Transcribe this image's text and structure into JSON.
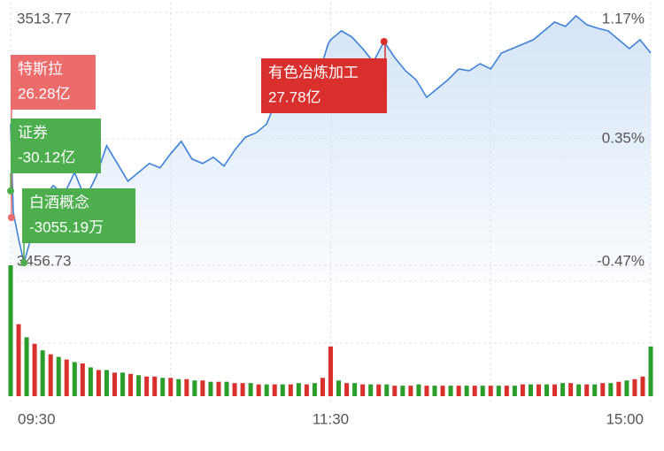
{
  "chart_data": [
    {
      "type": "line",
      "color": "#3d82d6",
      "fill_color": "#cfe1f6",
      "xlim": [
        0,
        240
      ],
      "xticks": [
        {
          "value": 0,
          "label": "09:30"
        },
        {
          "value": 120,
          "label": "11:30"
        },
        {
          "value": 240,
          "label": "15:00"
        }
      ],
      "x": [
        0,
        1,
        3,
        5,
        8,
        12,
        16,
        20,
        24,
        28,
        32,
        36,
        40,
        44,
        48,
        52,
        56,
        60,
        64,
        68,
        72,
        76,
        80,
        84,
        88,
        92,
        96,
        100,
        104,
        108,
        112,
        116,
        119,
        120,
        124,
        128,
        132,
        136,
        140,
        144,
        148,
        152,
        156,
        160,
        164,
        168,
        172,
        176,
        180,
        184,
        188,
        192,
        196,
        200,
        204,
        208,
        212,
        216,
        220,
        224,
        228,
        232,
        236,
        240
      ],
      "values": [
        3488.6,
        3468.7,
        3462.7,
        3457.3,
        3463.7,
        3471.7,
        3474.7,
        3472.7,
        3477.7,
        3471.7,
        3476.7,
        3483.7,
        3479.7,
        3475.7,
        3477.7,
        3479.7,
        3478.7,
        3481.9,
        3484.7,
        3480.7,
        3479.7,
        3481.1,
        3479.1,
        3482.7,
        3485.6,
        3486.6,
        3488.6,
        3494.6,
        3497.6,
        3496.6,
        3498.6,
        3500.6,
        3506.6,
        3507.6,
        3509.6,
        3508.2,
        3505.6,
        3502.6,
        3507.2,
        3503.6,
        3500.6,
        3498.6,
        3494.6,
        3496.6,
        3498.6,
        3501.0,
        3500.6,
        3502.2,
        3501.0,
        3504.6,
        3505.6,
        3506.6,
        3507.6,
        3509.6,
        3511.6,
        3510.6,
        3513.0,
        3511.0,
        3510.2,
        3509.6,
        3507.6,
        3505.6,
        3507.6,
        3504.6
      ],
      "ylim": [
        3456.73,
        3513.77
      ],
      "yticks": [
        3513.77,
        3485.25,
        3456.73
      ],
      "y2lim": [
        -0.47,
        1.17
      ],
      "y2ticks": [
        {
          "value": 1.17,
          "label": "1.17%"
        },
        {
          "value": 0.35,
          "label": "0.35%"
        },
        {
          "value": -0.47,
          "label": "-0.47%"
        }
      ],
      "grid": true,
      "annotations": [
        {
          "title": "特斯拉",
          "amount": "26.28亿",
          "x": 0.3,
          "y": 3467.5,
          "color": "#ec6b6b"
        },
        {
          "title": "证券",
          "amount": "-30.12亿",
          "x": 0,
          "y": 3473.5,
          "color": "#4cae4c"
        },
        {
          "title": "白酒概念",
          "amount": "-3055.19万",
          "x": 5,
          "y": 3457.3,
          "color": "#4cae4c"
        },
        {
          "title": "有色冶炼加工",
          "amount": "27.78亿",
          "x": 140,
          "y": 3507.2,
          "color": "#d9302e"
        }
      ]
    },
    {
      "type": "bar",
      "xlim": [
        0,
        240
      ],
      "ylim": [
        0,
        100
      ],
      "x": [
        0,
        3,
        6,
        9,
        12,
        15,
        18,
        21,
        24,
        27,
        30,
        33,
        36,
        39,
        42,
        45,
        48,
        51,
        54,
        57,
        60,
        63,
        66,
        69,
        72,
        75,
        78,
        81,
        84,
        87,
        90,
        93,
        96,
        99,
        102,
        105,
        108,
        111,
        114,
        117,
        120,
        123,
        126,
        129,
        132,
        135,
        138,
        141,
        144,
        147,
        150,
        153,
        156,
        159,
        162,
        165,
        168,
        171,
        174,
        177,
        180,
        183,
        186,
        189,
        192,
        195,
        198,
        201,
        204,
        207,
        210,
        213,
        216,
        219,
        222,
        225,
        228,
        231,
        234,
        237,
        240
      ],
      "values": [
        100,
        55,
        45,
        40,
        35,
        32,
        30,
        28,
        26,
        25,
        22,
        20,
        20,
        18,
        18,
        17,
        16,
        15,
        15,
        14,
        14,
        13,
        13,
        12,
        12,
        11,
        11,
        11,
        10,
        10,
        10,
        9,
        9,
        9,
        9,
        9,
        10,
        9,
        10,
        14,
        38,
        12,
        10,
        10,
        9,
        9,
        9,
        9,
        8,
        8,
        8,
        9,
        8,
        8,
        8,
        8,
        8,
        8,
        8,
        8,
        8,
        8,
        8,
        8,
        9,
        9,
        9,
        9,
        9,
        10,
        10,
        9,
        9,
        9,
        10,
        10,
        11,
        12,
        13,
        15,
        38
      ],
      "colors": [
        "#2a9d2a",
        "#d9302e",
        "#2a9d2a",
        "#d9302e",
        "#2a9d2a",
        "#d9302e",
        "#2a9d2a",
        "#d9302e",
        "#2a9d2a",
        "#d9302e",
        "#2a9d2a",
        "#d9302e",
        "#2a9d2a",
        "#d9302e",
        "#2a9d2a",
        "#d9302e",
        "#2a9d2a",
        "#d9302e",
        "#d9302e",
        "#2a9d2a",
        "#d9302e",
        "#2a9d2a",
        "#d9302e",
        "#2a9d2a",
        "#d9302e",
        "#2a9d2a",
        "#d9302e",
        "#2a9d2a",
        "#d9302e",
        "#d9302e",
        "#2a9d2a",
        "#d9302e",
        "#2a9d2a",
        "#d9302e",
        "#2a9d2a",
        "#d9302e",
        "#2a9d2a",
        "#d9302e",
        "#2a9d2a",
        "#d9302e",
        "#d9302e",
        "#2a9d2a",
        "#d9302e",
        "#2a9d2a",
        "#d9302e",
        "#2a9d2a",
        "#d9302e",
        "#2a9d2a",
        "#d9302e",
        "#2a9d2a",
        "#d9302e",
        "#2a9d2a",
        "#d9302e",
        "#2a9d2a",
        "#d9302e",
        "#2a9d2a",
        "#d9302e",
        "#2a9d2a",
        "#d9302e",
        "#2a9d2a",
        "#d9302e",
        "#2a9d2a",
        "#d9302e",
        "#2a9d2a",
        "#d9302e",
        "#2a9d2a",
        "#d9302e",
        "#2a9d2a",
        "#d9302e",
        "#2a9d2a",
        "#d9302e",
        "#2a9d2a",
        "#d9302e",
        "#2a9d2a",
        "#d9302e",
        "#2a9d2a",
        "#d9302e",
        "#2a9d2a",
        "#d9302e",
        "#d9302e",
        "#2a9d2a"
      ]
    }
  ]
}
